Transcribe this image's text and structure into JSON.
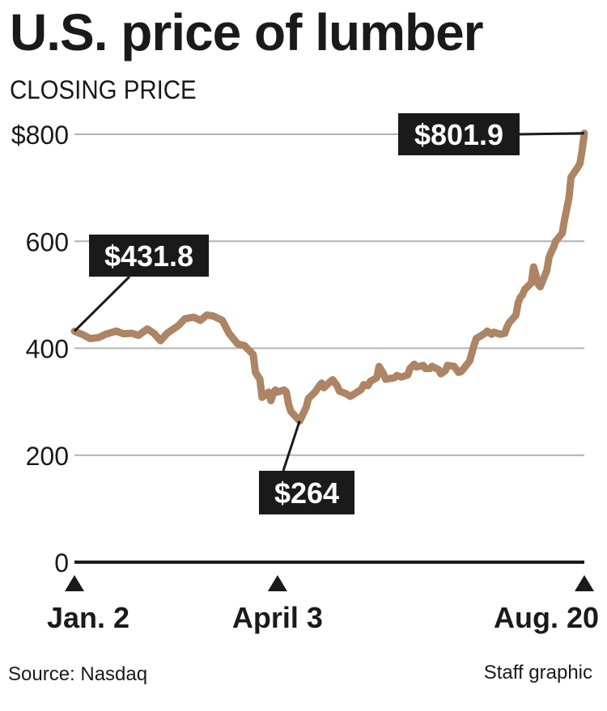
{
  "header": {
    "title": "U.S. price of lumber",
    "subtitle": "CLOSING PRICE"
  },
  "footer": {
    "source": "Source: Nasdaq",
    "credit": "Staff graphic"
  },
  "colors": {
    "line": "#ad8464",
    "grid": "#b3b3b3",
    "axis": "#1a1a1a",
    "callout_bg": "#1a1a1a",
    "callout_text": "#ffffff"
  },
  "chart_data": {
    "type": "line",
    "title": "U.S. price of lumber",
    "subtitle": "CLOSING PRICE",
    "ylim": [
      0,
      800
    ],
    "y_ticks": [
      0,
      200,
      400,
      600,
      800
    ],
    "y_tick_labels": [
      "0",
      "200",
      "400",
      "600",
      "$800"
    ],
    "x_ticks": [
      {
        "x": "2020-01-02",
        "label": "Jan. 2"
      },
      {
        "x": "2020-04-03",
        "label": "April 3"
      },
      {
        "x": "2020-08-20",
        "label": "Aug. 20"
      }
    ],
    "grid": true,
    "series": [
      {
        "points": [
          [
            "2020-01-02",
            431.8
          ],
          [
            "2020-01-06",
            425
          ],
          [
            "2020-01-09",
            418
          ],
          [
            "2020-01-13",
            420
          ],
          [
            "2020-01-16",
            426
          ],
          [
            "2020-01-21",
            432
          ],
          [
            "2020-01-24",
            427
          ],
          [
            "2020-01-28",
            428
          ],
          [
            "2020-01-31",
            424
          ],
          [
            "2020-02-04",
            436
          ],
          [
            "2020-02-07",
            428
          ],
          [
            "2020-02-10",
            414
          ],
          [
            "2020-02-13",
            428
          ],
          [
            "2020-02-18",
            442
          ],
          [
            "2020-02-21",
            455
          ],
          [
            "2020-02-25",
            458
          ],
          [
            "2020-02-28",
            452
          ],
          [
            "2020-03-02",
            462
          ],
          [
            "2020-03-05",
            460
          ],
          [
            "2020-03-09",
            452
          ],
          [
            "2020-03-12",
            428
          ],
          [
            "2020-03-16",
            408
          ],
          [
            "2020-03-19",
            405
          ],
          [
            "2020-03-23",
            388
          ],
          [
            "2020-03-24",
            355
          ],
          [
            "2020-03-26",
            342
          ],
          [
            "2020-03-27",
            308
          ],
          [
            "2020-03-30",
            318
          ],
          [
            "2020-03-31",
            302
          ],
          [
            "2020-04-01",
            314
          ],
          [
            "2020-04-02",
            322
          ],
          [
            "2020-04-03",
            318
          ],
          [
            "2020-04-06",
            322
          ],
          [
            "2020-04-07",
            318
          ],
          [
            "2020-04-08",
            296
          ],
          [
            "2020-04-09",
            282
          ],
          [
            "2020-04-13",
            264
          ],
          [
            "2020-04-14",
            272
          ],
          [
            "2020-04-16",
            290
          ],
          [
            "2020-04-17",
            306
          ],
          [
            "2020-04-20",
            318
          ],
          [
            "2020-04-22",
            330
          ],
          [
            "2020-04-23",
            335
          ],
          [
            "2020-04-24",
            326
          ],
          [
            "2020-04-27",
            338
          ],
          [
            "2020-04-28",
            341
          ],
          [
            "2020-04-30",
            330
          ],
          [
            "2020-05-01",
            320
          ],
          [
            "2020-05-04",
            315
          ],
          [
            "2020-05-06",
            310
          ],
          [
            "2020-05-08",
            315
          ],
          [
            "2020-05-11",
            323
          ],
          [
            "2020-05-12",
            332
          ],
          [
            "2020-05-14",
            330
          ],
          [
            "2020-05-15",
            338
          ],
          [
            "2020-05-18",
            345
          ],
          [
            "2020-05-19",
            366
          ],
          [
            "2020-05-21",
            352
          ],
          [
            "2020-05-22",
            342
          ],
          [
            "2020-05-26",
            345
          ],
          [
            "2020-05-27",
            349
          ],
          [
            "2020-05-29",
            346
          ],
          [
            "2020-06-01",
            350
          ],
          [
            "2020-06-02",
            362
          ],
          [
            "2020-06-04",
            370
          ],
          [
            "2020-06-05",
            365
          ],
          [
            "2020-06-08",
            368
          ],
          [
            "2020-06-09",
            362
          ],
          [
            "2020-06-11",
            362
          ],
          [
            "2020-06-12",
            366
          ],
          [
            "2020-06-15",
            360
          ],
          [
            "2020-06-16",
            352
          ],
          [
            "2020-06-18",
            358
          ],
          [
            "2020-06-19",
            368
          ],
          [
            "2020-06-22",
            366
          ],
          [
            "2020-06-24",
            355
          ],
          [
            "2020-06-25",
            356
          ],
          [
            "2020-06-26",
            360
          ],
          [
            "2020-06-29",
            376
          ],
          [
            "2020-07-01",
            405
          ],
          [
            "2020-07-02",
            418
          ],
          [
            "2020-07-06",
            428
          ],
          [
            "2020-07-07",
            432
          ],
          [
            "2020-07-09",
            426
          ],
          [
            "2020-07-10",
            430
          ],
          [
            "2020-07-13",
            426
          ],
          [
            "2020-07-15",
            428
          ],
          [
            "2020-07-16",
            440
          ],
          [
            "2020-07-17",
            448
          ],
          [
            "2020-07-20",
            462
          ],
          [
            "2020-07-21",
            485
          ],
          [
            "2020-07-22",
            495
          ],
          [
            "2020-07-23",
            500
          ],
          [
            "2020-07-24",
            510
          ],
          [
            "2020-07-27",
            522
          ],
          [
            "2020-07-28",
            552
          ],
          [
            "2020-07-29",
            538
          ],
          [
            "2020-07-30",
            520
          ],
          [
            "2020-07-31",
            515
          ],
          [
            "2020-08-03",
            545
          ],
          [
            "2020-08-04",
            570
          ],
          [
            "2020-08-05",
            580
          ],
          [
            "2020-08-06",
            588
          ],
          [
            "2020-08-07",
            600
          ],
          [
            "2020-08-10",
            615
          ],
          [
            "2020-08-11",
            640
          ],
          [
            "2020-08-12",
            660
          ],
          [
            "2020-08-13",
            680
          ],
          [
            "2020-08-14",
            720
          ],
          [
            "2020-08-17",
            738
          ],
          [
            "2020-08-18",
            745
          ],
          [
            "2020-08-19",
            770
          ],
          [
            "2020-08-20",
            801.9
          ]
        ]
      }
    ],
    "annotations": [
      {
        "x": "2020-01-02",
        "y": 431.8,
        "label": "$431.8"
      },
      {
        "x": "2020-04-13",
        "y": 264,
        "label": "$264"
      },
      {
        "x": "2020-08-20",
        "y": 801.9,
        "label": "$801.9"
      }
    ]
  }
}
